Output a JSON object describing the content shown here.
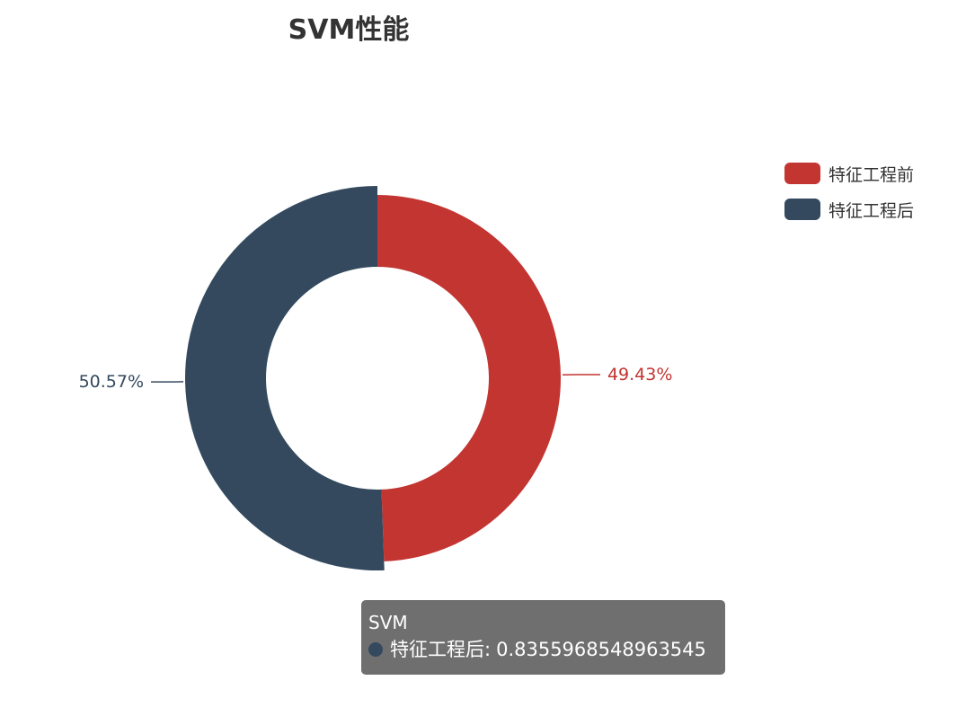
{
  "chart_data": {
    "type": "pie",
    "variant": "donut",
    "title": "SVM性能",
    "categories": [
      "特征工程前",
      "特征工程后"
    ],
    "percent_labels": [
      "49.43%",
      "50.57%"
    ],
    "values": [
      0.8166,
      0.8355968548963545
    ],
    "colors": [
      "#c23531",
      "#34495e"
    ],
    "legend": {
      "placement": "top-right",
      "items": [
        "特征工程前",
        "特征工程后"
      ]
    }
  },
  "tooltip": {
    "title": "SVM",
    "series_name": "特征工程后",
    "separator": ":",
    "value": "0.8355968548963545",
    "dot_color": "#34495e"
  }
}
